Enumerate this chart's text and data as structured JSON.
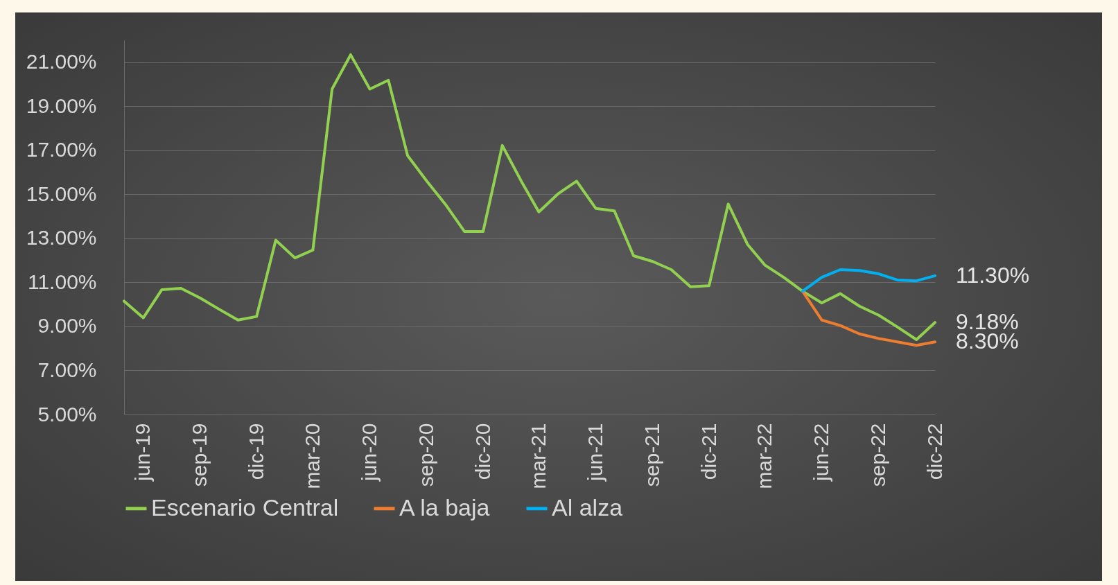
{
  "chart_data": {
    "type": "line",
    "x": [
      "2019-05",
      "2019-06",
      "2019-07",
      "2019-08",
      "2019-09",
      "2019-10",
      "2019-11",
      "2019-12",
      "2020-01",
      "2020-02",
      "2020-03",
      "2020-04",
      "2020-05",
      "2020-06",
      "2020-07",
      "2020-08",
      "2020-09",
      "2020-10",
      "2020-11",
      "2020-12",
      "2021-01",
      "2021-02",
      "2021-03",
      "2021-04",
      "2021-05",
      "2021-06",
      "2021-07",
      "2021-08",
      "2021-09",
      "2021-10",
      "2021-11",
      "2021-12",
      "2022-01",
      "2022-02",
      "2022-03",
      "2022-04",
      "2022-05",
      "2022-06",
      "2022-07",
      "2022-08",
      "2022-09",
      "2022-10",
      "2022-11",
      "2022-12"
    ],
    "series": [
      {
        "name": "Escenario Central",
        "color": "#92d050",
        "values": [
          10.15,
          9.39,
          10.67,
          10.73,
          10.29,
          9.79,
          9.29,
          9.45,
          12.92,
          12.11,
          12.47,
          19.78,
          21.34,
          19.78,
          20.18,
          16.76,
          15.6,
          14.55,
          13.31,
          13.31,
          17.22,
          15.58,
          14.2,
          15.02,
          15.6,
          14.36,
          14.25,
          12.21,
          11.95,
          11.58,
          10.8,
          10.85,
          14.56,
          12.73,
          11.79,
          11.22,
          10.6,
          10.07,
          10.49,
          9.92,
          9.51,
          8.98,
          8.4,
          9.18
        ],
        "value_labels": [
          null,
          null,
          null,
          null,
          null,
          null,
          null,
          null,
          null,
          null,
          null,
          null,
          null,
          null,
          null,
          null,
          null,
          null,
          null,
          null,
          null,
          null,
          null,
          null,
          null,
          null,
          null,
          null,
          null,
          null,
          null,
          null,
          null,
          null,
          null,
          null,
          null,
          null,
          null,
          null,
          null,
          null,
          null,
          "9.18%"
        ]
      },
      {
        "name": "A la baja",
        "color": "#ed7d31",
        "values": [
          null,
          null,
          null,
          null,
          null,
          null,
          null,
          null,
          null,
          null,
          null,
          null,
          null,
          null,
          null,
          null,
          null,
          null,
          null,
          null,
          null,
          null,
          null,
          null,
          null,
          null,
          null,
          null,
          null,
          null,
          null,
          null,
          null,
          null,
          null,
          null,
          10.6,
          9.29,
          9.04,
          8.66,
          8.45,
          8.3,
          8.14,
          8.3
        ],
        "value_labels": [
          null,
          null,
          null,
          null,
          null,
          null,
          null,
          null,
          null,
          null,
          null,
          null,
          null,
          null,
          null,
          null,
          null,
          null,
          null,
          null,
          null,
          null,
          null,
          null,
          null,
          null,
          null,
          null,
          null,
          null,
          null,
          null,
          null,
          null,
          null,
          null,
          null,
          null,
          null,
          null,
          null,
          null,
          null,
          "8.30%"
        ]
      },
      {
        "name": "Al alza",
        "color": "#00b0f0",
        "values": [
          null,
          null,
          null,
          null,
          null,
          null,
          null,
          null,
          null,
          null,
          null,
          null,
          null,
          null,
          null,
          null,
          null,
          null,
          null,
          null,
          null,
          null,
          null,
          null,
          null,
          null,
          null,
          null,
          null,
          null,
          null,
          null,
          null,
          null,
          null,
          null,
          10.6,
          11.23,
          11.58,
          11.54,
          11.39,
          11.11,
          11.07,
          11.3
        ],
        "value_labels": [
          null,
          null,
          null,
          null,
          null,
          null,
          null,
          null,
          null,
          null,
          null,
          null,
          null,
          null,
          null,
          null,
          null,
          null,
          null,
          null,
          null,
          null,
          null,
          null,
          null,
          null,
          null,
          null,
          null,
          null,
          null,
          null,
          null,
          null,
          null,
          null,
          null,
          null,
          null,
          null,
          null,
          null,
          null,
          "11.30%"
        ]
      }
    ],
    "xlim": [
      "2019-05",
      "2022-12"
    ],
    "xticks": [
      {
        "value": "2019-06",
        "label": "jun-19"
      },
      {
        "value": "2019-09",
        "label": "sep-19"
      },
      {
        "value": "2019-12",
        "label": "dic-19"
      },
      {
        "value": "2020-03",
        "label": "mar-20"
      },
      {
        "value": "2020-06",
        "label": "jun-20"
      },
      {
        "value": "2020-09",
        "label": "sep-20"
      },
      {
        "value": "2020-12",
        "label": "dic-20"
      },
      {
        "value": "2021-03",
        "label": "mar-21"
      },
      {
        "value": "2021-06",
        "label": "jun-21"
      },
      {
        "value": "2021-09",
        "label": "sep-21"
      },
      {
        "value": "2021-12",
        "label": "dic-21"
      },
      {
        "value": "2022-03",
        "label": "mar-22"
      },
      {
        "value": "2022-06",
        "label": "jun-22"
      },
      {
        "value": "2022-09",
        "label": "sep-22"
      },
      {
        "value": "2022-12",
        "label": "dic-22"
      }
    ],
    "ylim": [
      5,
      22
    ],
    "yticks": [
      {
        "value": 5,
        "label": "5.00%"
      },
      {
        "value": 7,
        "label": "7.00%"
      },
      {
        "value": 9,
        "label": "9.00%"
      },
      {
        "value": 11,
        "label": "11.00%"
      },
      {
        "value": 13,
        "label": "13.00%"
      },
      {
        "value": 15,
        "label": "15.00%"
      },
      {
        "value": 17,
        "label": "17.00%"
      },
      {
        "value": 19,
        "label": "19.00%"
      },
      {
        "value": 21,
        "label": "21.00%"
      }
    ],
    "grid": "y",
    "legend": "bottom",
    "marker": "none",
    "line_style": "solid"
  }
}
